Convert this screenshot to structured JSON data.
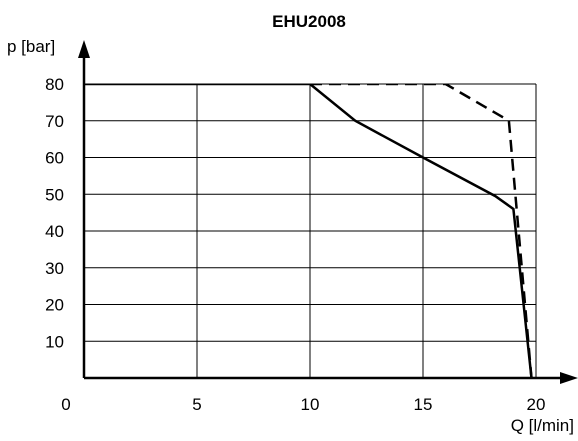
{
  "chart_data": {
    "type": "line",
    "title": "EHU2008",
    "xlabel": "Q [l/min]",
    "ylabel": "p [bar]",
    "xlim": [
      0,
      20
    ],
    "ylim": [
      0,
      80
    ],
    "x_ticks": [
      "0",
      "5",
      "10",
      "15",
      "20"
    ],
    "y_ticks": [
      "10",
      "20",
      "30",
      "40",
      "50",
      "60",
      "70",
      "80"
    ],
    "grid": true,
    "series": [
      {
        "style": "solid",
        "x": [
          0,
          10,
          12,
          15,
          18.2,
          19,
          19.8
        ],
        "y": [
          80,
          80,
          70,
          60,
          49.5,
          46,
          0
        ]
      },
      {
        "style": "dashed",
        "x": [
          10,
          16,
          18.8,
          19.8
        ],
        "y": [
          80,
          80,
          70,
          0
        ]
      }
    ]
  }
}
